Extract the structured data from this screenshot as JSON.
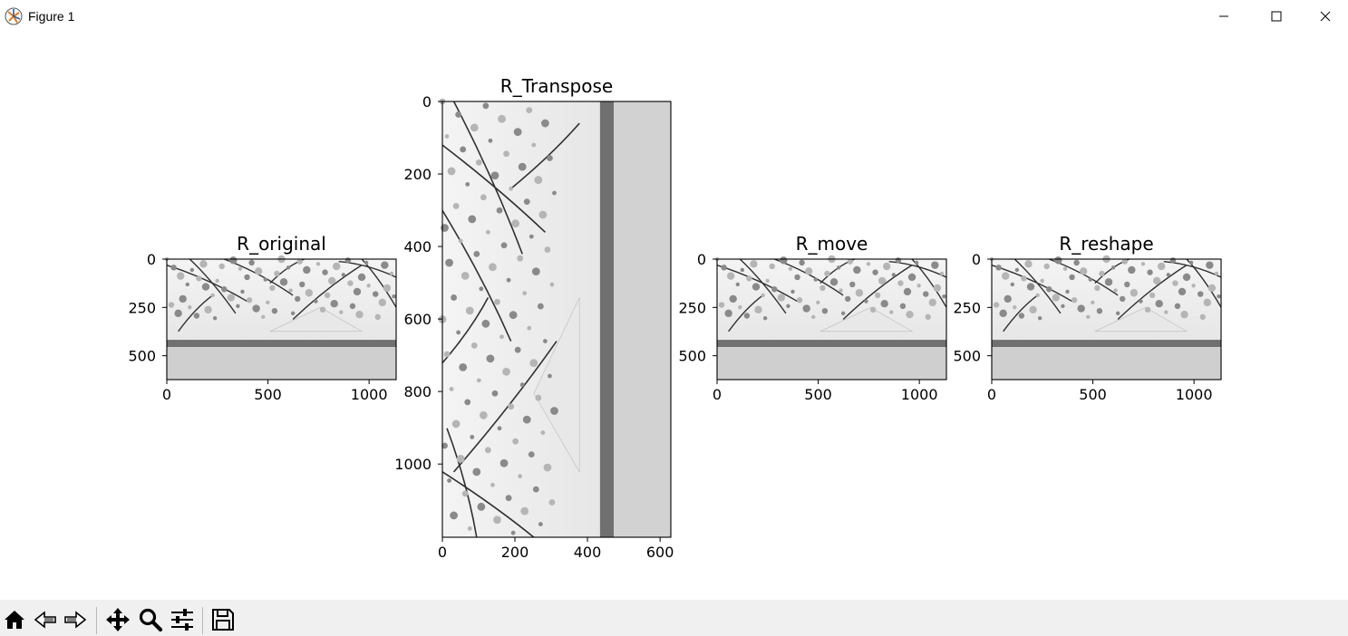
{
  "window": {
    "title": "Figure 1"
  },
  "icons": {
    "app": "matplotlib-figure-icon",
    "minimize": "minimize-icon",
    "maximize": "maximize-icon",
    "close": "close-icon"
  },
  "toolbar": {
    "buttons": [
      "home-icon",
      "back-icon",
      "forward-icon",
      "pan-icon",
      "zoom-icon",
      "configure-subplots-icon",
      "save-icon"
    ]
  },
  "chart_data": [
    {
      "type": "image",
      "title": "R_original",
      "colormap": "gray",
      "xticks": [
        "0",
        "500",
        "1000"
      ],
      "yticks": [
        "0",
        "250",
        "500"
      ]
    },
    {
      "type": "image",
      "title": "R_Transpose",
      "colormap": "gray",
      "xticks": [
        "0",
        "200",
        "400",
        "600"
      ],
      "yticks": [
        "0",
        "200",
        "400",
        "600",
        "800",
        "1000"
      ]
    },
    {
      "type": "image",
      "title": "R_move",
      "colormap": "gray",
      "xticks": [
        "0",
        "500",
        "1000"
      ],
      "yticks": [
        "0",
        "250",
        "500"
      ]
    },
    {
      "type": "image",
      "title": "R_reshape",
      "colormap": "gray",
      "xticks": [
        "0",
        "500",
        "1000"
      ],
      "yticks": [
        "0",
        "250",
        "500"
      ]
    }
  ]
}
